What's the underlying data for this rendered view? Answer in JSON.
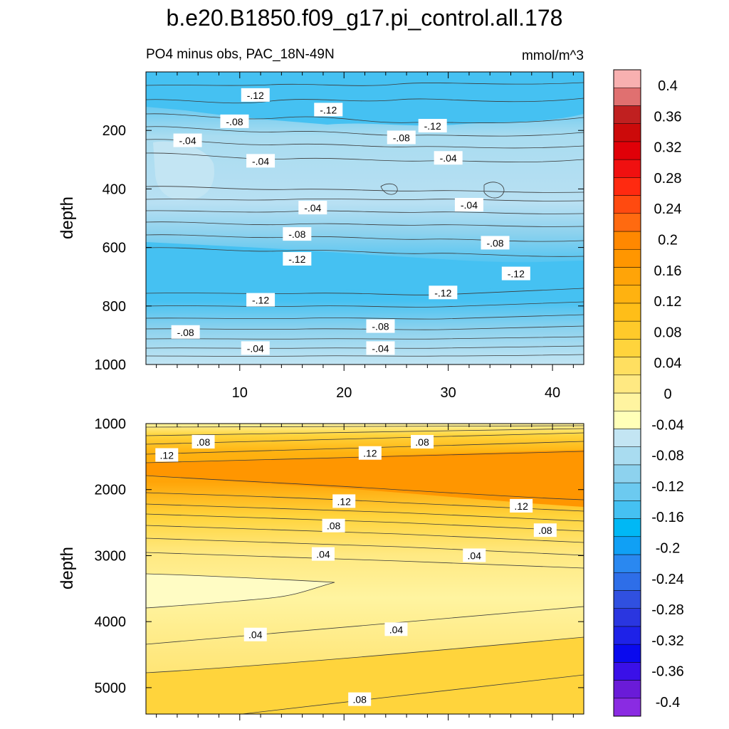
{
  "figure": {
    "title": "b.e20.B1850.f09_g17.pi_control.all.178",
    "subtitle_left": "PO4 minus obs, PAC_18N-49N",
    "units": "mmol/m^3"
  },
  "colors": {
    "contour_line": "#3a3a3a",
    "labelbar": [
      "#8a2be2",
      "#6a1bd8",
      "#3a10e8",
      "#0a0aee",
      "#1e22e8",
      "#2a36e0",
      "#3050e0",
      "#2e6ee8",
      "#2a88f0",
      "#10a0f5",
      "#00b8f5",
      "#45c1f2",
      "#6ccaf0",
      "#8dd2ee",
      "#a9dcf0",
      "#c3e5f3",
      "#ffffb8",
      "#fff4a0",
      "#ffe982",
      "#ffdf60",
      "#ffd43c",
      "#ffca2a",
      "#ffbe18",
      "#ffb210",
      "#ffa408",
      "#ff9600",
      "#ff8800",
      "#ff6a10",
      "#ff4a10",
      "#ff2a10",
      "#f01010",
      "#e00008",
      "#cc0a0a",
      "#c02020",
      "#e07070",
      "#f8b0b0"
    ]
  },
  "chart_data": [
    {
      "type": "contour",
      "panel": "upper",
      "title": "PO4 minus obs, PAC_18N-49N",
      "units": "mmol/m^3",
      "ylabel": "depth",
      "xlabel": "",
      "xlim": [
        1,
        43
      ],
      "ylim": [
        1000,
        0
      ],
      "x_ticks": [
        10,
        20,
        30,
        40
      ],
      "x_tick_labels": [
        "10",
        "20",
        "30",
        "40"
      ],
      "y_ticks": [
        200,
        400,
        600,
        800,
        1000
      ],
      "y_tick_labels": [
        "200",
        "400",
        "600",
        "800",
        "1000"
      ],
      "contour_labels": [
        {
          "text": "-.12",
          "x": 11.5,
          "y": 80
        },
        {
          "text": "-.12",
          "x": 18.5,
          "y": 130
        },
        {
          "text": "-.12",
          "x": 28.5,
          "y": 185
        },
        {
          "text": "-.08",
          "x": 9.5,
          "y": 170
        },
        {
          "text": "-.08",
          "x": 25.5,
          "y": 225
        },
        {
          "text": "-.04",
          "x": 5,
          "y": 235
        },
        {
          "text": "-.04",
          "x": 12,
          "y": 305
        },
        {
          "text": "-.04",
          "x": 30,
          "y": 295
        },
        {
          "text": "-.04",
          "x": 17,
          "y": 465
        },
        {
          "text": "-.04",
          "x": 32,
          "y": 455
        },
        {
          "text": "-.08",
          "x": 15.5,
          "y": 555
        },
        {
          "text": "-.08",
          "x": 34.5,
          "y": 585
        },
        {
          "text": "-.12",
          "x": 15.5,
          "y": 640
        },
        {
          "text": "-.12",
          "x": 36.5,
          "y": 690
        },
        {
          "text": "-.12",
          "x": 29.5,
          "y": 755
        },
        {
          "text": "-.12",
          "x": 12,
          "y": 780
        },
        {
          "text": "-.08",
          "x": 4.8,
          "y": 890
        },
        {
          "text": "-.08",
          "x": 23.5,
          "y": 870
        },
        {
          "text": "-.04",
          "x": 11.5,
          "y": 945
        },
        {
          "text": "-.04",
          "x": 23.5,
          "y": 945
        }
      ]
    },
    {
      "type": "contour",
      "panel": "lower",
      "ylabel": "depth",
      "xlabel": "",
      "xlim": [
        1,
        43
      ],
      "ylim": [
        5400,
        1000
      ],
      "y_ticks": [
        1000,
        2000,
        3000,
        4000,
        5000
      ],
      "y_tick_labels": [
        "1000",
        "2000",
        "3000",
        "4000",
        "5000"
      ],
      "contour_labels": [
        {
          "text": ".12",
          "x": 3,
          "y": 1480
        },
        {
          "text": ".08",
          "x": 6.5,
          "y": 1280
        },
        {
          "text": ".12",
          "x": 22.5,
          "y": 1450
        },
        {
          "text": ".08",
          "x": 27.5,
          "y": 1280
        },
        {
          "text": ".12",
          "x": 20,
          "y": 2180
        },
        {
          "text": ".12",
          "x": 37,
          "y": 2250
        },
        {
          "text": ".08",
          "x": 19,
          "y": 2550
        },
        {
          "text": ".08",
          "x": 39.3,
          "y": 2620
        },
        {
          "text": ".04",
          "x": 18,
          "y": 2980
        },
        {
          "text": ".04",
          "x": 32.5,
          "y": 3000
        },
        {
          "text": ".04",
          "x": 11.5,
          "y": 4200
        },
        {
          "text": ".04",
          "x": 25,
          "y": 4120
        },
        {
          "text": ".08",
          "x": 21.5,
          "y": 5180
        }
      ]
    },
    {
      "type": "labelbar",
      "levels": [
        -0.4,
        -0.38,
        -0.36,
        -0.34,
        -0.32,
        -0.3,
        -0.28,
        -0.26,
        -0.24,
        -0.22,
        -0.2,
        -0.18,
        -0.16,
        -0.14,
        -0.12,
        -0.1,
        -0.08,
        -0.06,
        -0.04,
        -0.02,
        0,
        0.02,
        0.04,
        0.06,
        0.08,
        0.1,
        0.12,
        0.14,
        0.16,
        0.18,
        0.2,
        0.22,
        0.24,
        0.26,
        0.28,
        0.3,
        0.32,
        0.34,
        0.36,
        0.38,
        0.4
      ],
      "tick_labels": [
        "0.4",
        "0.36",
        "0.32",
        "0.28",
        "0.24",
        "0.2",
        "0.16",
        "0.12",
        "0.08",
        "0.04",
        "0",
        "-0.04",
        "-0.08",
        "-0.12",
        "-0.16",
        "-0.2",
        "-0.24",
        "-0.28",
        "-0.32",
        "-0.36",
        "-0.4"
      ]
    }
  ]
}
